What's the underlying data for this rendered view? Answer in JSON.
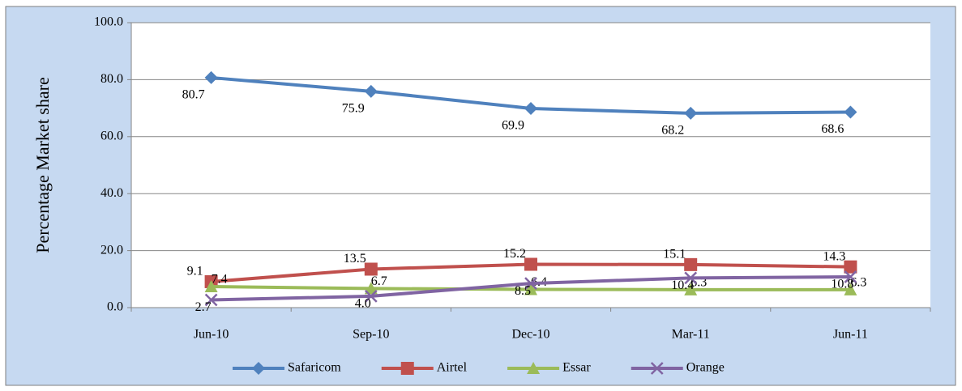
{
  "chart_data": {
    "type": "line",
    "y_label": "Percentage Market share",
    "categories": [
      "Jun-10",
      "Sep-10",
      "Dec-10",
      "Mar-11",
      "Jun-11"
    ],
    "series": [
      {
        "name": "Safaricom",
        "color": "#4f81bd",
        "marker": "diamond",
        "values": [
          80.7,
          75.9,
          69.9,
          68.2,
          68.6
        ],
        "value_labels": [
          "80.7",
          "75.9",
          "69.9",
          "68.2",
          "68.6"
        ]
      },
      {
        "name": "Airtel",
        "color": "#c0504d",
        "marker": "square",
        "values": [
          9.1,
          13.5,
          15.2,
          15.1,
          14.3
        ],
        "value_labels": [
          "9.1",
          "13.5",
          "15.2",
          "15.1",
          "14.3"
        ]
      },
      {
        "name": "Essar",
        "color": "#9bbb59",
        "marker": "triangle",
        "values": [
          7.4,
          6.7,
          6.4,
          6.3,
          6.3
        ],
        "value_labels": [
          "7.4",
          "6.7",
          "6.4",
          "6.3",
          "6.3"
        ]
      },
      {
        "name": "Orange",
        "color": "#8064a2",
        "marker": "x",
        "values": [
          2.7,
          4.0,
          8.5,
          10.4,
          10.8
        ],
        "value_labels": [
          "2.7",
          "4.0",
          "8.5",
          "10.4",
          "10.8"
        ]
      }
    ],
    "ylim": [
      0,
      100
    ],
    "yticks": [
      {
        "value": 0,
        "label": "0.0"
      },
      {
        "value": 20,
        "label": "20.0"
      },
      {
        "value": 40,
        "label": "40.0"
      },
      {
        "value": 60,
        "label": "60.0"
      },
      {
        "value": 80,
        "label": "80.0"
      },
      {
        "value": 100,
        "label": "100.0"
      }
    ],
    "grid": true,
    "legend": "bottom"
  }
}
